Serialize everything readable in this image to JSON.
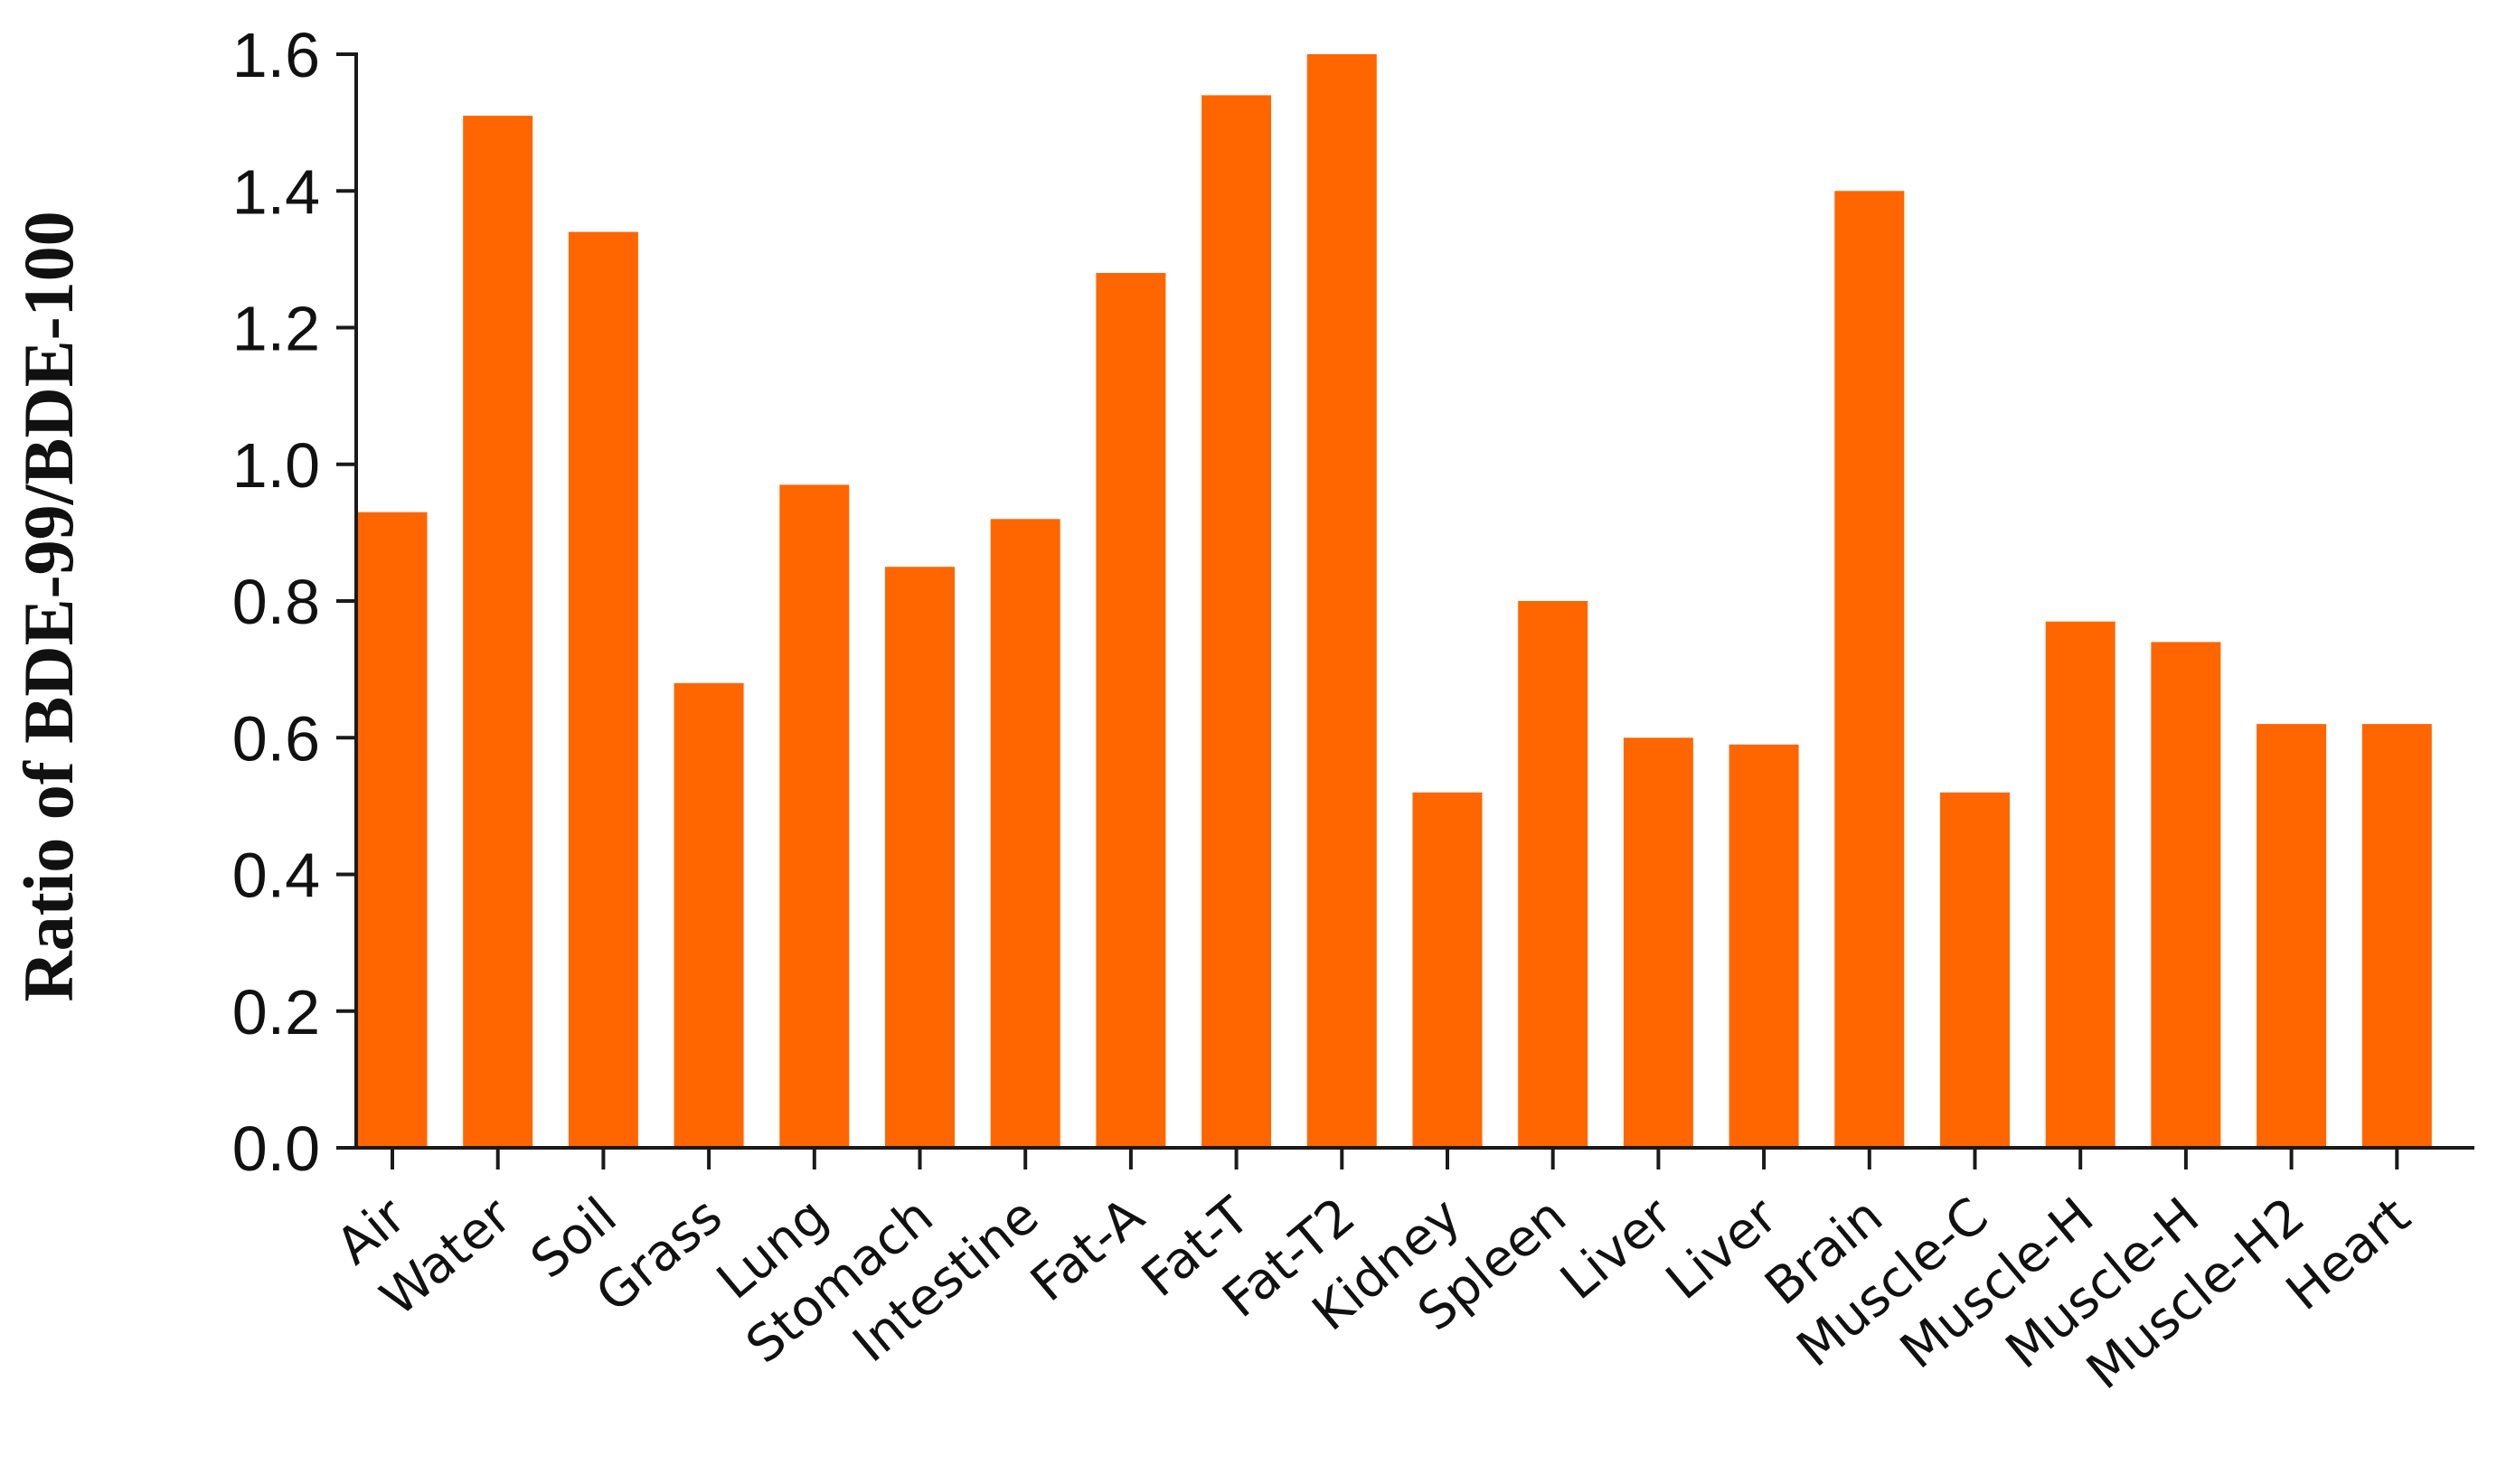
{
  "chart_data": {
    "type": "bar",
    "title": "",
    "xlabel": "",
    "ylabel": "Ratio of BDE-99/BDE-100",
    "ylim": [
      0,
      1.6
    ],
    "yticks": [
      "0.0",
      "0.2",
      "0.4",
      "0.6",
      "0.8",
      "1.0",
      "1.2",
      "1.4",
      "1.6"
    ],
    "grid": false,
    "legend": "none",
    "bar_color": "#ff6600",
    "categories": [
      "Air",
      "Water",
      "Soil",
      "Grass",
      "Lung",
      "Stomach",
      "Intestine",
      "Fat-A",
      "Fat-T",
      "Fat-T2",
      "Kidney",
      "Spleen",
      "Liver",
      "Liver",
      "Brain",
      "Muscle-C",
      "Muscle-H",
      "Muscle-H",
      "Muscle-H2",
      "Heart"
    ],
    "values": [
      0.93,
      1.51,
      1.34,
      0.68,
      0.97,
      0.85,
      0.92,
      1.28,
      1.54,
      1.6,
      0.52,
      0.8,
      0.6,
      0.59,
      1.4,
      0.52,
      0.77,
      0.74,
      0.62,
      0.62
    ]
  }
}
